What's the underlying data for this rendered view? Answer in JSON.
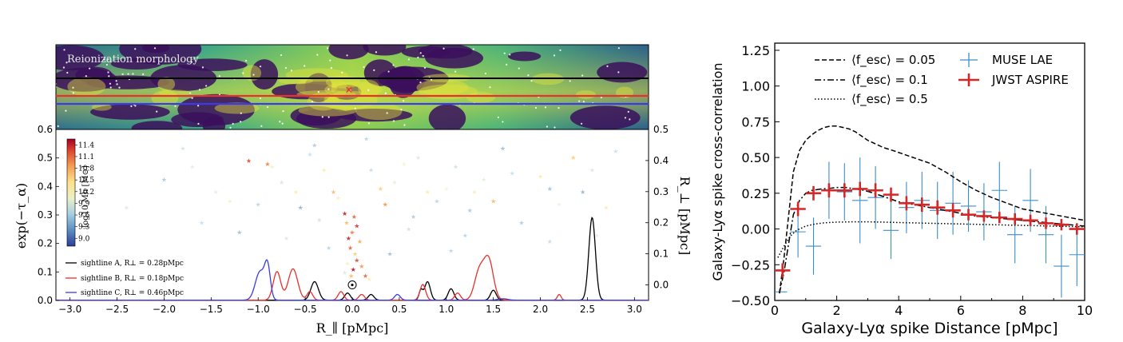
{
  "chart_data": [
    {
      "type": "line",
      "panel": "left",
      "map_label": "Reionization morphology",
      "xlabel": "R_∥ [pMpc]",
      "ylabel": "exp(−τ_α)",
      "ylabel_right": "R_⊥ [pMpc]",
      "xlim": [
        -3.15,
        3.15
      ],
      "ylim": [
        0,
        0.6
      ],
      "ylim_right": [
        -0.05,
        0.5
      ],
      "xticks": [
        "−3.0",
        "−2.5",
        "−2.0",
        "−1.5",
        "−1.0",
        "−0.5",
        "0.0",
        "0.5",
        "1.0",
        "1.5",
        "2.0",
        "2.5",
        "3.0"
      ],
      "yticks": [
        "0.0",
        "0.1",
        "0.2",
        "0.3",
        "0.4",
        "0.5",
        "0.6"
      ],
      "yticks_right": [
        "0.0",
        "0.1",
        "0.2",
        "0.3",
        "0.4",
        "0.5"
      ],
      "colorbar": {
        "label": "log10 Mh [M⊙]",
        "ticks": [
          "11.4",
          "11.1",
          "10.8",
          "10.5",
          "10.2",
          "9.9",
          "9.6",
          "9.3",
          "9.0"
        ],
        "range": [
          8.8,
          11.55
        ]
      },
      "legend": [
        "sightline A, R⊥ = 0.28pMpc",
        "sightline B, R⊥ = 0.18pMpc",
        "sightline C, R⊥ = 0.46pMpc"
      ],
      "series": [
        {
          "name": "sightline A, R⊥ = 0.28pMpc",
          "color": "#000000",
          "peaks": [
            [
              -0.4,
              0.065,
              0.04
            ],
            [
              -0.05,
              0.025,
              0.03
            ],
            [
              0.2,
              0.02,
              0.03
            ],
            [
              0.8,
              0.065,
              0.03
            ],
            [
              0.73,
              0.035,
              0.02
            ],
            [
              1.05,
              0.04,
              0.03
            ],
            [
              1.5,
              0.035,
              0.03
            ],
            [
              2.55,
              0.29,
              0.035
            ]
          ]
        },
        {
          "name": "sightline B, R⊥ = 0.18pMpc",
          "color": "#e8302c",
          "peaks": [
            [
              -0.8,
              0.1,
              0.04
            ],
            [
              -0.63,
              0.11,
              0.05
            ],
            [
              -0.45,
              0.03,
              0.03
            ],
            [
              -0.12,
              0.03,
              0.03
            ],
            [
              0.1,
              0.02,
              0.03
            ],
            [
              0.75,
              0.055,
              0.03
            ],
            [
              1.12,
              0.025,
              0.03
            ],
            [
              1.35,
              0.1,
              0.05
            ],
            [
              1.45,
              0.14,
              0.05
            ],
            [
              2.2,
              0.02,
              0.02
            ]
          ]
        },
        {
          "name": "sightline C, R⊥ = 0.46pMpc",
          "color": "#3a3ae6",
          "peaks": [
            [
              -0.98,
              0.1,
              0.05
            ],
            [
              -0.9,
              0.11,
              0.03
            ],
            [
              0.48,
              0.02,
              0.03
            ],
            [
              1.6,
              0.005,
              0.05
            ]
          ]
        }
      ],
      "galaxies": [
        [
          -0.08,
          0.23,
          11.3
        ],
        [
          0.02,
          0.22,
          11.0
        ],
        [
          -0.06,
          0.2,
          10.6
        ],
        [
          0.05,
          0.19,
          11.2
        ],
        [
          0.0,
          0.17,
          10.9
        ],
        [
          -0.04,
          0.15,
          11.3
        ],
        [
          0.08,
          0.14,
          10.7
        ],
        [
          -0.02,
          0.12,
          11.0
        ],
        [
          0.03,
          0.1,
          10.5
        ],
        [
          0.05,
          0.08,
          11.1
        ],
        [
          -0.05,
          0.07,
          10.2
        ],
        [
          0.1,
          0.06,
          10.8
        ],
        [
          0.14,
          0.03,
          11.0
        ],
        [
          0.18,
          0.02,
          10.4
        ],
        [
          -0.08,
          0.04,
          9.8
        ],
        [
          0.01,
          0.05,
          11.4
        ],
        [
          -0.01,
          0.03,
          10.6
        ],
        [
          -1.1,
          0.4,
          11.1
        ],
        [
          -0.9,
          0.39,
          10.9
        ],
        [
          -0.85,
          0.38,
          10.2
        ],
        [
          -1.45,
          0.3,
          9.9
        ],
        [
          -1.3,
          0.27,
          10.1
        ],
        [
          -1.0,
          0.26,
          9.5
        ],
        [
          -0.75,
          0.33,
          9.8
        ],
        [
          -0.6,
          0.3,
          10.4
        ],
        [
          -0.45,
          0.42,
          9.6
        ],
        [
          -0.3,
          0.37,
          10.3
        ],
        [
          -0.55,
          0.25,
          9.2
        ],
        [
          -0.2,
          0.3,
          10.6
        ],
        [
          -0.15,
          0.28,
          10.2
        ],
        [
          -0.35,
          0.21,
          9.7
        ],
        [
          0.2,
          0.37,
          9.6
        ],
        [
          0.3,
          0.31,
          10.5
        ],
        [
          0.35,
          0.26,
          10.8
        ],
        [
          0.45,
          0.33,
          9.9
        ],
        [
          0.55,
          0.39,
          10.1
        ],
        [
          0.7,
          0.41,
          9.8
        ],
        [
          0.8,
          0.3,
          10.4
        ],
        [
          0.9,
          0.27,
          9.5
        ],
        [
          1.0,
          0.31,
          10.0
        ],
        [
          1.1,
          0.38,
          9.7
        ],
        [
          1.25,
          0.24,
          9.4
        ],
        [
          1.3,
          0.3,
          10.3
        ],
        [
          1.4,
          0.34,
          9.9
        ],
        [
          1.5,
          0.27,
          10.6
        ],
        [
          1.7,
          0.36,
          9.6
        ],
        [
          2.0,
          0.35,
          10.4
        ],
        [
          2.1,
          0.31,
          9.3
        ],
        [
          2.2,
          0.26,
          10.0
        ],
        [
          2.35,
          0.41,
          10.5
        ],
        [
          2.45,
          0.3,
          9.2
        ],
        [
          2.55,
          0.37,
          9.8
        ],
        [
          2.7,
          0.25,
          10.3
        ],
        [
          2.8,
          0.43,
          9.6
        ],
        [
          -2.4,
          0.25,
          9.8
        ],
        [
          -2.0,
          0.34,
          9.4
        ],
        [
          -1.7,
          0.38,
          9.9
        ],
        [
          -1.6,
          0.2,
          9.6
        ],
        [
          -1.2,
          0.17,
          9.3
        ],
        [
          -0.7,
          0.15,
          9.8
        ],
        [
          0.6,
          0.18,
          9.7
        ],
        [
          1.2,
          0.16,
          9.5
        ],
        [
          1.8,
          0.2,
          9.4
        ],
        [
          2.1,
          0.14,
          9.6
        ],
        [
          2.6,
          0.16,
          9.9
        ],
        [
          -0.4,
          0.45,
          9.4
        ],
        [
          0.15,
          0.47,
          9.5
        ],
        [
          1.6,
          0.44,
          9.3
        ],
        [
          -1.8,
          0.44,
          9.7
        ],
        [
          0.65,
          0.22,
          9.4
        ],
        [
          -0.25,
          0.12,
          9.5
        ],
        [
          0.4,
          0.1,
          9.3
        ],
        [
          1.05,
          0.11,
          9.5
        ]
      ],
      "marked_point": [
        0.0,
        0.0
      ]
    },
    {
      "type": "line",
      "panel": "right",
      "xlabel": "Galaxy-Lyα spike Distance [pMpc]",
      "ylabel": "Galaxy-Lyα spike cross-correlation",
      "xlim": [
        0,
        10
      ],
      "ylim": [
        -0.5,
        1.3
      ],
      "xticks": [
        "0",
        "2",
        "4",
        "6",
        "8",
        "10"
      ],
      "yticks": [
        "−0.50",
        "−0.25",
        "0.00",
        "0.25",
        "0.50",
        "0.75",
        "1.00",
        "1.25"
      ],
      "legend_models": [
        "⟨f_esc⟩ = 0.05",
        "⟨f_esc⟩ = 0.1",
        "⟨f_esc⟩ = 0.5"
      ],
      "legend_data": [
        "MUSE LAE",
        "JWST ASPIRE"
      ],
      "series": [
        {
          "name": "⟨f_esc⟩ = 0.05",
          "dash": "dashed",
          "x": [
            0.15,
            0.3,
            0.45,
            0.6,
            0.8,
            1.0,
            1.2,
            1.4,
            1.6,
            1.8,
            2.0,
            2.2,
            2.4,
            2.6,
            2.8,
            3.0,
            3.2,
            3.5,
            3.8,
            4.2,
            4.6,
            5.0,
            5.5,
            6.0,
            6.5,
            7.0,
            7.5,
            8.0,
            8.5,
            9.0,
            9.5,
            10.0
          ],
          "y": [
            -0.45,
            -0.2,
            0.1,
            0.4,
            0.55,
            0.62,
            0.66,
            0.69,
            0.71,
            0.72,
            0.72,
            0.71,
            0.7,
            0.68,
            0.65,
            0.62,
            0.6,
            0.57,
            0.55,
            0.52,
            0.49,
            0.46,
            0.4,
            0.33,
            0.27,
            0.22,
            0.18,
            0.14,
            0.12,
            0.1,
            0.08,
            0.06
          ]
        },
        {
          "name": "⟨f_esc⟩ = 0.1",
          "dash": "dashdot",
          "x": [
            0.15,
            0.3,
            0.45,
            0.6,
            0.8,
            1.0,
            1.2,
            1.5,
            1.8,
            2.0,
            2.3,
            2.6,
            2.9,
            3.2,
            3.6,
            4.0,
            4.5,
            5.0,
            5.5,
            6.0,
            6.5,
            7.0,
            7.5,
            8.0,
            8.5,
            9.0,
            9.5,
            10.0
          ],
          "y": [
            -0.45,
            -0.3,
            -0.1,
            0.1,
            0.2,
            0.25,
            0.27,
            0.28,
            0.285,
            0.29,
            0.29,
            0.28,
            0.27,
            0.25,
            0.22,
            0.19,
            0.17,
            0.15,
            0.13,
            0.11,
            0.09,
            0.08,
            0.07,
            0.06,
            0.05,
            0.04,
            0.03,
            0.02
          ]
        },
        {
          "name": "⟨f_esc⟩ = 0.5",
          "dash": "dotted",
          "x": [
            0.1,
            0.3,
            0.5,
            0.7,
            1.0,
            1.3,
            1.6,
            2.0,
            2.5,
            3.0,
            3.5,
            4.0,
            5.0,
            6.0,
            7.0,
            8.0,
            9.0,
            10.0
          ],
          "y": [
            -0.2,
            -0.12,
            -0.05,
            -0.01,
            0.02,
            0.035,
            0.043,
            0.048,
            0.05,
            0.05,
            0.048,
            0.045,
            0.04,
            0.035,
            0.03,
            0.025,
            0.02,
            0.015
          ]
        }
      ],
      "muse_lae": {
        "name": "MUSE LAE",
        "color": "#3b8fc9",
        "points": [
          [
            0.2,
            -0.44,
            0.2,
            0.0
          ],
          [
            0.75,
            -0.02,
            0.25,
            0.18
          ],
          [
            1.25,
            -0.12,
            0.25,
            0.2
          ],
          [
            1.75,
            0.27,
            0.25,
            0.2
          ],
          [
            2.25,
            0.26,
            0.25,
            0.2
          ],
          [
            2.75,
            0.2,
            0.25,
            0.3
          ],
          [
            3.25,
            0.22,
            0.25,
            0.22
          ],
          [
            3.75,
            -0.01,
            0.25,
            0.2
          ],
          [
            4.25,
            0.15,
            0.25,
            0.18
          ],
          [
            4.75,
            0.2,
            0.25,
            0.2
          ],
          [
            5.25,
            0.13,
            0.25,
            0.2
          ],
          [
            5.75,
            0.18,
            0.25,
            0.22
          ],
          [
            6.25,
            0.16,
            0.25,
            0.18
          ],
          [
            6.75,
            0.12,
            0.25,
            0.2
          ],
          [
            7.25,
            0.27,
            0.25,
            0.2
          ],
          [
            7.75,
            -0.04,
            0.25,
            0.2
          ],
          [
            8.25,
            0.2,
            0.25,
            0.22
          ],
          [
            8.75,
            -0.04,
            0.25,
            0.2
          ],
          [
            9.25,
            -0.26,
            0.25,
            0.22
          ],
          [
            9.75,
            -0.18,
            0.25,
            0.22
          ]
        ]
      },
      "jwst_aspire": {
        "name": "JWST ASPIRE",
        "color": "#d62728",
        "points": [
          [
            0.25,
            -0.29,
            0.25,
            0.05
          ],
          [
            0.75,
            0.14,
            0.25,
            0.05
          ],
          [
            1.25,
            0.25,
            0.25,
            0.05
          ],
          [
            1.75,
            0.27,
            0.25,
            0.05
          ],
          [
            2.25,
            0.27,
            0.25,
            0.05
          ],
          [
            2.75,
            0.28,
            0.25,
            0.05
          ],
          [
            3.25,
            0.27,
            0.25,
            0.05
          ],
          [
            3.75,
            0.24,
            0.25,
            0.05
          ],
          [
            4.25,
            0.18,
            0.25,
            0.05
          ],
          [
            4.75,
            0.17,
            0.25,
            0.05
          ],
          [
            5.25,
            0.15,
            0.25,
            0.05
          ],
          [
            5.75,
            0.13,
            0.25,
            0.05
          ],
          [
            6.25,
            0.1,
            0.25,
            0.04
          ],
          [
            6.75,
            0.09,
            0.25,
            0.04
          ],
          [
            7.25,
            0.08,
            0.25,
            0.04
          ],
          [
            7.75,
            0.07,
            0.25,
            0.04
          ],
          [
            8.25,
            0.06,
            0.25,
            0.04
          ],
          [
            8.75,
            0.04,
            0.25,
            0.04
          ],
          [
            9.25,
            0.03,
            0.25,
            0.04
          ],
          [
            9.75,
            0.0,
            0.25,
            0.04
          ]
        ]
      }
    }
  ]
}
